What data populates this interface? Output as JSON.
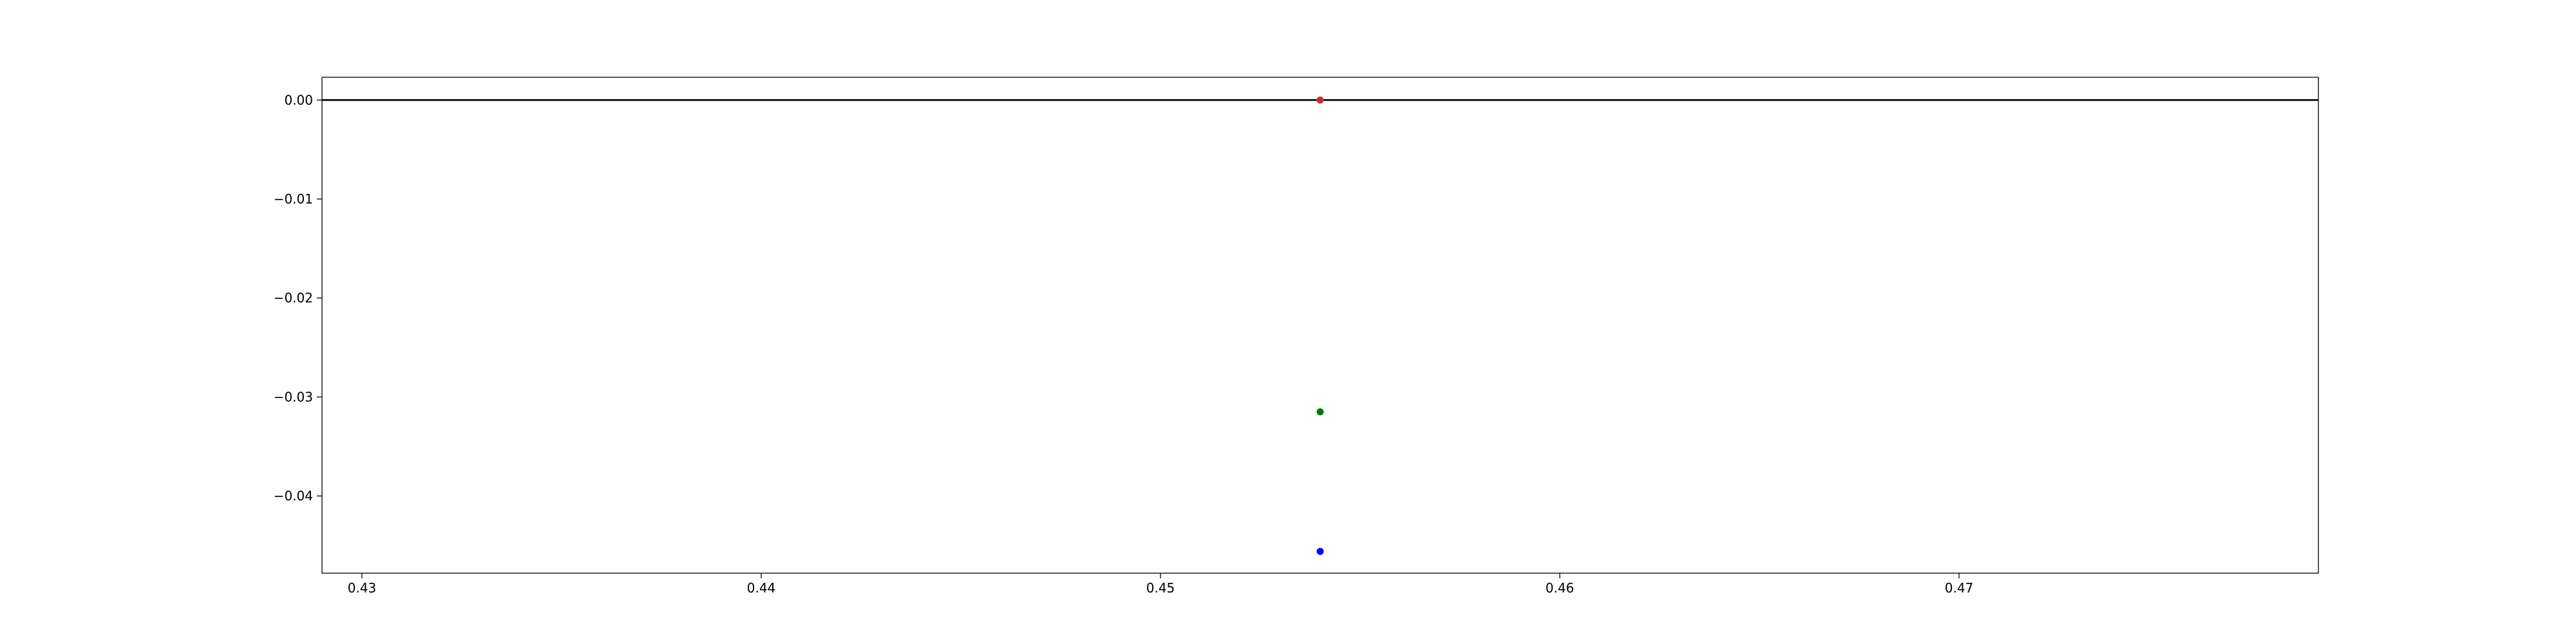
{
  "chart_data": {
    "type": "scatter",
    "title": "",
    "xlabel": "",
    "ylabel": "",
    "xlim": [
      0.429,
      0.479
    ],
    "ylim": [
      -0.0478,
      0.0023
    ],
    "grid": false,
    "legend": "none",
    "x_ticks": [
      0.43,
      0.44,
      0.45,
      0.46,
      0.47
    ],
    "x_tick_labels": [
      "0.43",
      "0.44",
      "0.45",
      "0.46",
      "0.47"
    ],
    "y_ticks": [
      0.0,
      -0.01,
      -0.02,
      -0.03,
      -0.04
    ],
    "y_tick_labels": [
      "0.00",
      "−0.01",
      "−0.02",
      "−0.03",
      "−0.04"
    ],
    "reference_line": {
      "y": 0.0,
      "color": "#000000"
    },
    "points": [
      {
        "x": 0.454,
        "y": 0.0,
        "color": "#d62728"
      },
      {
        "x": 0.454,
        "y": -0.0315,
        "color": "#008000"
      },
      {
        "x": 0.454,
        "y": -0.0456,
        "color": "#0000ff"
      }
    ]
  }
}
